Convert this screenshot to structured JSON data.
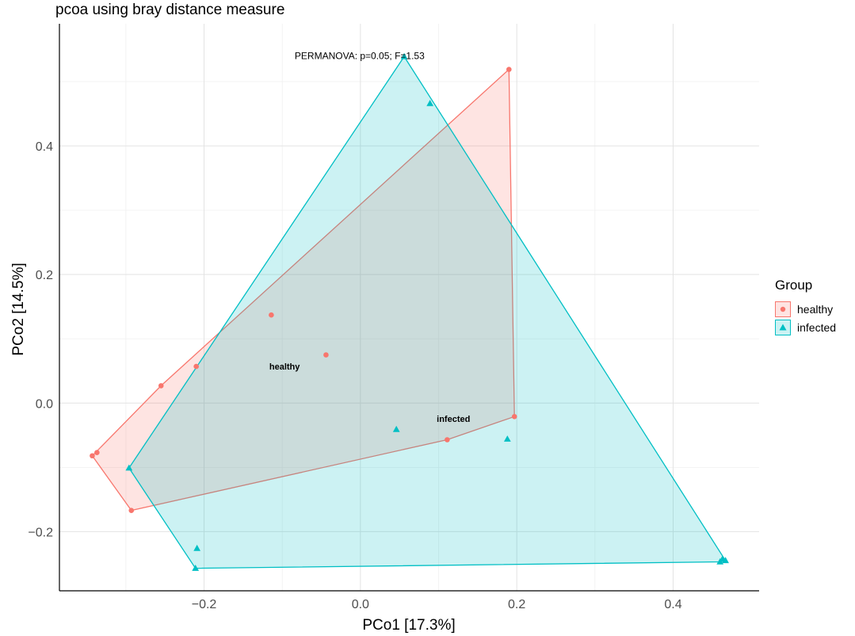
{
  "chart_data": {
    "type": "scatter",
    "title": "pcoa using bray distance measure",
    "xlabel": "PCo1 [17.3%]",
    "ylabel": "PCo2 [14.5%]",
    "xlim": [
      -0.385,
      0.51
    ],
    "ylim": [
      -0.292,
      0.59
    ],
    "x_ticks": [
      -0.2,
      0.0,
      0.2,
      0.4
    ],
    "x_tick_labels": [
      "−0.2",
      "0.0",
      "0.2",
      "0.4"
    ],
    "y_ticks": [
      -0.2,
      0.0,
      0.2,
      0.4
    ],
    "y_tick_labels": [
      "−0.2",
      "0.0",
      "0.2",
      "0.4"
    ],
    "grid": true,
    "annotation": "PERMANOVA: p=0.05; F=1.53",
    "annotation_pos": {
      "x": -0.001,
      "y": 0.535
    },
    "legend_title": "Group",
    "legend_position": "right",
    "series": [
      {
        "name": "healthy",
        "color": "#F8766D",
        "shape": "circle",
        "points": [
          {
            "x": 0.19,
            "y": 0.519
          },
          {
            "x": 0.197,
            "y": -0.021
          },
          {
            "x": 0.111,
            "y": -0.057
          },
          {
            "x": -0.114,
            "y": 0.137
          },
          {
            "x": -0.044,
            "y": 0.075
          },
          {
            "x": -0.21,
            "y": 0.057
          },
          {
            "x": -0.255,
            "y": 0.027
          },
          {
            "x": -0.343,
            "y": -0.082
          },
          {
            "x": -0.337,
            "y": -0.077
          },
          {
            "x": -0.293,
            "y": -0.167
          }
        ],
        "centroid_label": {
          "text": "healthy",
          "x": -0.097,
          "y": 0.052
        }
      },
      {
        "name": "infected",
        "color": "#00BFC4",
        "shape": "triangle",
        "points": [
          {
            "x": 0.056,
            "y": 0.539
          },
          {
            "x": 0.089,
            "y": 0.466
          },
          {
            "x": 0.046,
            "y": -0.041
          },
          {
            "x": 0.188,
            "y": -0.056
          },
          {
            "x": -0.296,
            "y": -0.101
          },
          {
            "x": -0.209,
            "y": -0.226
          },
          {
            "x": -0.211,
            "y": -0.257
          },
          {
            "x": 0.463,
            "y": -0.243
          },
          {
            "x": 0.467,
            "y": -0.245
          },
          {
            "x": 0.46,
            "y": -0.247
          }
        ],
        "centroid_label": {
          "text": "infected",
          "x": 0.119,
          "y": -0.029
        }
      }
    ]
  }
}
